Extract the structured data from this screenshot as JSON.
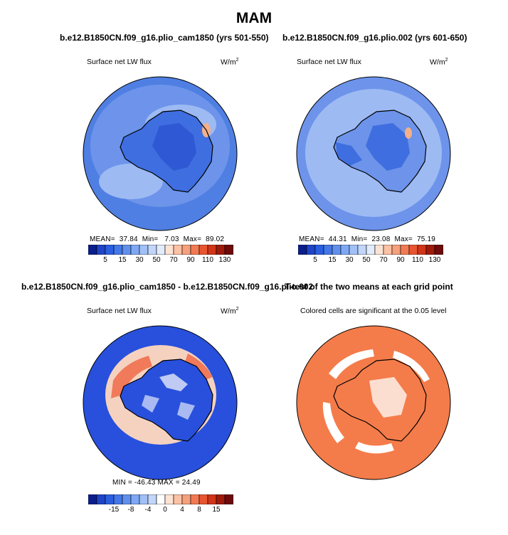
{
  "main_title": "MAM",
  "panels": [
    {
      "title": "b.e12.B1850CN.f09_g16.plio_cam1850 (yrs 501-550)",
      "field_label": "Surface net LW flux",
      "units": "W/m",
      "units_sup": "2",
      "stats": {
        "mean_label": "MEAN=",
        "mean": "37.84",
        "min_label": "Min=",
        "min": "7.03",
        "max_label": "Max=",
        "max": "89.02"
      }
    },
    {
      "title": "b.e12.B1850CN.f09_g16.plio.002 (yrs 601-650)",
      "field_label": "Surface net LW flux",
      "units": "W/m",
      "units_sup": "2",
      "stats": {
        "mean_label": "MEAN=",
        "mean": "44.31",
        "min_label": "Min=",
        "min": "23.08",
        "max_label": "Max=",
        "max": "75.19"
      }
    },
    {
      "title": "b.e12.B1850CN.f09_g16.plio_cam1850 - b.e12.B1850CN.f09_g16.plio.002",
      "field_label": "Surface net LW flux",
      "units": "W/m",
      "units_sup": "2",
      "stats_line": "MIN = -46.43 MAX =  24.49"
    },
    {
      "title": "T-test of the two means at each grid point",
      "field_label": "Colored cells are significant at the 0.05 level"
    }
  ],
  "colorbar_abs": {
    "colors": [
      "#0a1e8c",
      "#1e44c8",
      "#2b5fe0",
      "#4477e8",
      "#6090ee",
      "#7ea8f3",
      "#a0c0f6",
      "#c2d6fa",
      "#e2ecfc",
      "#fde3d4",
      "#fbc2a6",
      "#f7a07c",
      "#f27a52",
      "#e85530",
      "#d23418",
      "#a01a0a",
      "#6e0a0a"
    ],
    "labels": [
      "5",
      "15",
      "30",
      "50",
      "70",
      "90",
      "110",
      "130"
    ]
  },
  "colorbar_diff": {
    "colors": [
      "#0a1e8c",
      "#1e44c8",
      "#2b5fe0",
      "#4477e8",
      "#6090ee",
      "#7ea8f3",
      "#a0c0f6",
      "#c2d6fa",
      "#ffffff",
      "#fde3d4",
      "#fbc2a6",
      "#f7a07c",
      "#f27a52",
      "#e85530",
      "#d23418",
      "#a01a0a",
      "#6e0a0a"
    ],
    "labels": [
      "-15",
      "-8",
      "-4",
      "0",
      "4",
      "8",
      "15"
    ]
  },
  "map_colors": {
    "ocean_low": "#4f7fe2",
    "ocean_mid": "#6d94ea",
    "ocean_light": "#9dbaf3",
    "continent": "#3f6ee0",
    "interior": "#2e58d4",
    "warm": "#f3b08a",
    "diff_ocean": "#2850dc",
    "diff_warm": "#f07a5a",
    "diff_pale": "#f5d2c0",
    "ttest": "#f47c4a"
  }
}
